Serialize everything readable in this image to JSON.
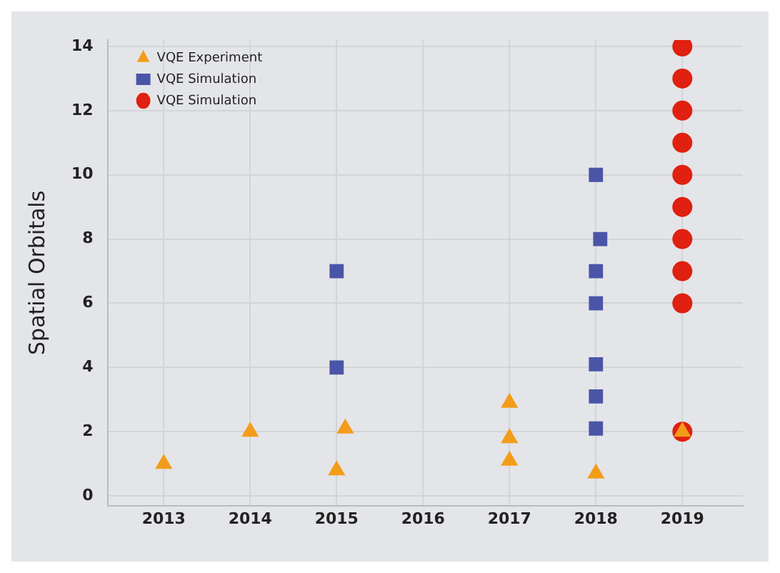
{
  "chart_data": {
    "type": "scatter",
    "ylabel": "Spatial Orbitals",
    "xlim": [
      2012.35,
      2019.7
    ],
    "ylim": [
      -0.3,
      14.2
    ],
    "xticks": [
      2013,
      2014,
      2015,
      2016,
      2017,
      2018,
      2019
    ],
    "yticks": [
      0,
      2,
      4,
      6,
      8,
      10,
      12,
      14
    ],
    "grid": true,
    "legend": "top left",
    "series": [
      {
        "name": "VQE Experiment",
        "color": "#f39c1a",
        "marker": "triangle",
        "x": [
          2013,
          2014,
          2015,
          2015.1,
          2017,
          2017,
          2017,
          2018,
          2019
        ],
        "values": [
          1,
          2,
          0.8,
          2.1,
          2.9,
          1.8,
          1.1,
          0.7,
          2
        ]
      },
      {
        "name": "VQE Simulation",
        "color": "#4a55a8",
        "marker": "square",
        "x": [
          2015,
          2015,
          2018,
          2018.05,
          2018,
          2018,
          2018,
          2018,
          2018
        ],
        "values": [
          7,
          4,
          10,
          8,
          7,
          6,
          4.1,
          3.1,
          2.1
        ]
      },
      {
        "name": "VQE Simulation",
        "color": "#e02010",
        "marker": "circle",
        "x": [
          2019,
          2019,
          2019,
          2019,
          2019,
          2019,
          2019,
          2019,
          2019,
          2019
        ],
        "values": [
          14,
          13,
          12,
          11,
          10,
          9,
          8,
          7,
          6,
          2
        ]
      }
    ]
  }
}
